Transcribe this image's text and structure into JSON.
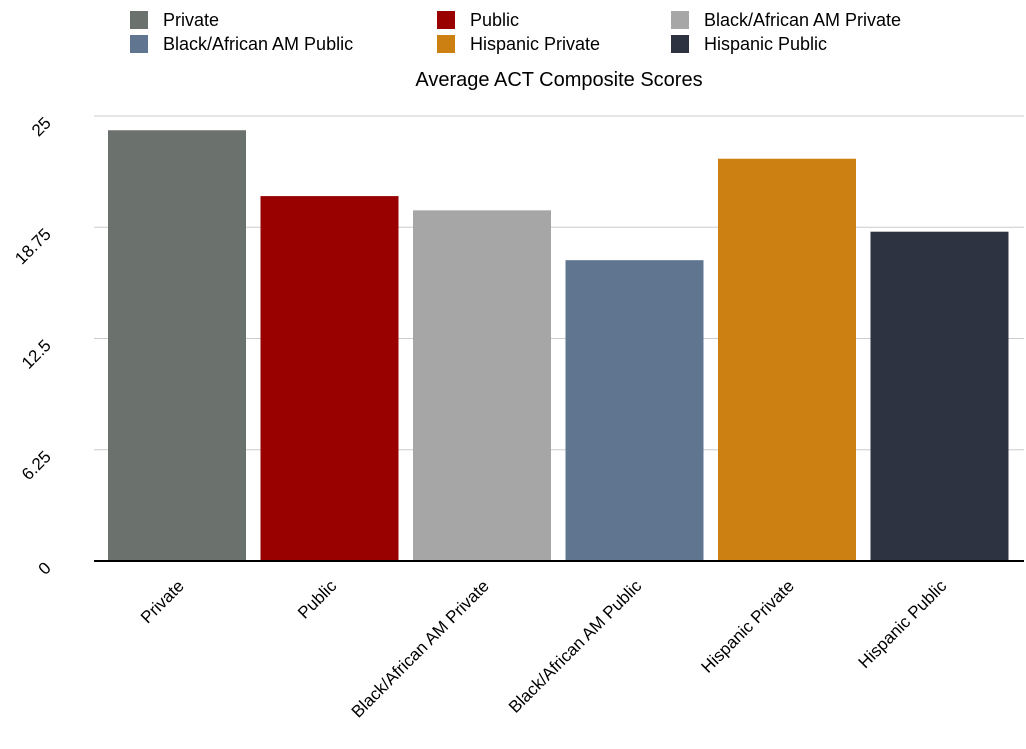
{
  "chart_data": {
    "type": "bar",
    "title": "Average ACT Composite Scores",
    "xlabel": "",
    "ylabel": "",
    "categories": [
      "Private",
      "Public",
      "Black/African AM Private",
      "Black/African AM Public",
      "Hispanic Private",
      "Hispanic Public"
    ],
    "values": [
      24.2,
      20.5,
      19.7,
      16.9,
      22.6,
      18.5
    ],
    "colors": [
      "#6b716c",
      "#990000",
      "#a6a6a6",
      "#607590",
      "#cc8012",
      "#2d3340"
    ],
    "yticks": [
      "0",
      "6.25",
      "12.5",
      "18.75",
      "25"
    ],
    "ylim": [
      0,
      25
    ],
    "grid": true,
    "legend_position": "top",
    "legend": [
      {
        "label": "Private",
        "color": "#6b716c"
      },
      {
        "label": "Public",
        "color": "#990000"
      },
      {
        "label": "Black/African AM Private",
        "color": "#a6a6a6"
      },
      {
        "label": "Black/African AM Public",
        "color": "#607590"
      },
      {
        "label": "Hispanic Private",
        "color": "#cc8012"
      },
      {
        "label": "Hispanic Public",
        "color": "#2d3340"
      }
    ]
  }
}
